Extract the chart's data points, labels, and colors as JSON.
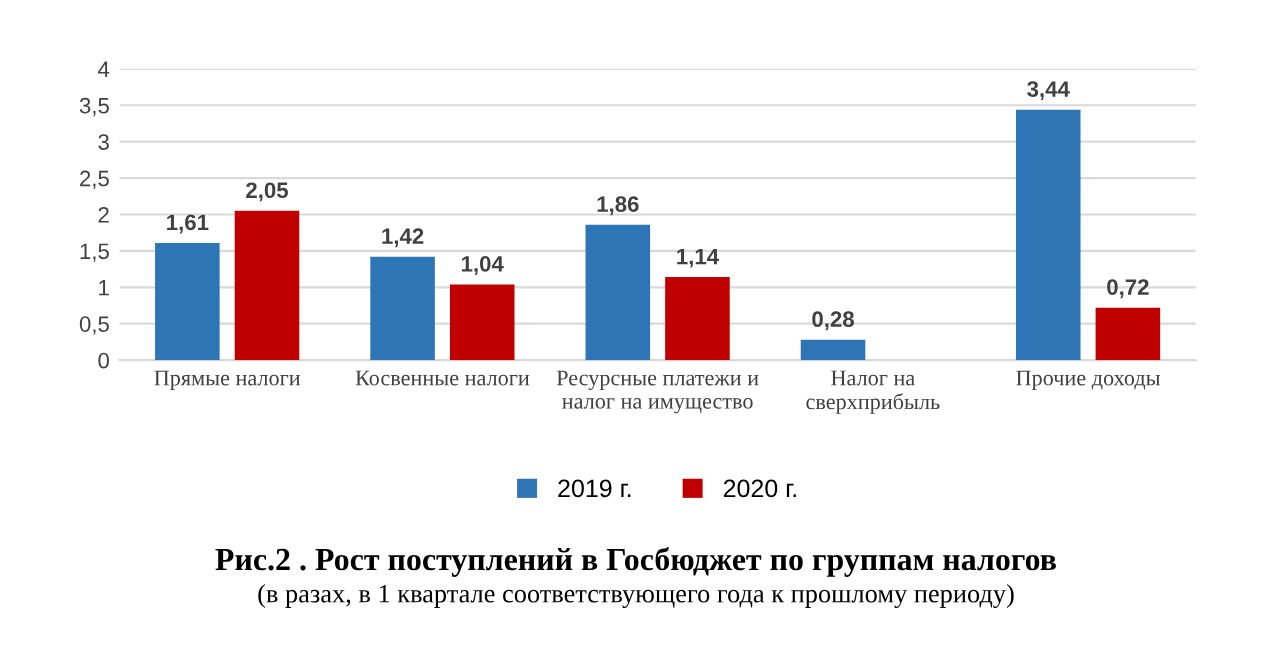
{
  "chart_data": {
    "type": "bar",
    "title": "Рис.2 . Рост поступлений в Госбюджет по группам налогов",
    "subtitle": "(в разах, в 1 квартале соответствующего года к прошлому периоду)",
    "categories": [
      "Прямые налоги",
      "Косвенные налоги",
      "Ресурсные платежи и\nналог на имущество",
      "Налог на\nсверхприбыль",
      "Прочие доходы"
    ],
    "series": [
      {
        "name": "2019 г.",
        "color": "#2e75b6",
        "values": [
          1.61,
          1.42,
          1.86,
          0.28,
          3.44
        ],
        "value_labels": [
          "1,61",
          "1,42",
          "1,86",
          "0,28",
          "3,44"
        ]
      },
      {
        "name": "2020 г.",
        "color": "#c00000",
        "values": [
          2.05,
          1.04,
          1.14,
          null,
          0.72
        ],
        "value_labels": [
          "2,05",
          "1,04",
          "1,14",
          null,
          "0,72"
        ]
      }
    ],
    "ylim": [
      0,
      4
    ],
    "yticks": [
      0,
      {
        "value": 0.5,
        "label": "0,5"
      },
      1,
      {
        "value": 1.5,
        "label": "1,5"
      },
      2,
      {
        "value": 2.5,
        "label": "2,5"
      },
      3,
      {
        "value": 3.5,
        "label": "3,5"
      },
      4
    ],
    "grid": "y",
    "legend": "bottom"
  }
}
